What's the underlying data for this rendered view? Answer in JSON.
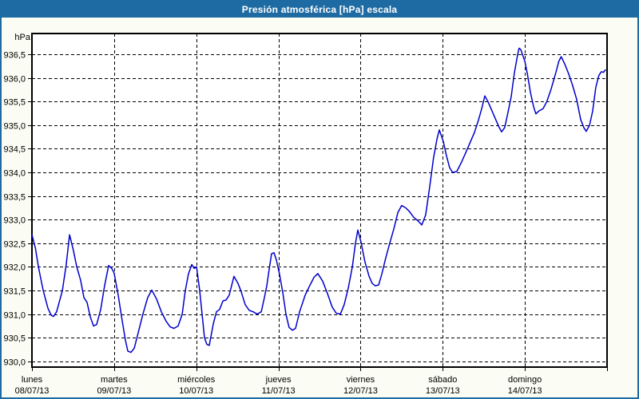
{
  "window": {
    "title": "Presión atmosférica [hPa] escala"
  },
  "colors": {
    "frame": "#1E6BA3",
    "titlebar_text": "#FFFFFF",
    "background": "#FBFCF3",
    "plot_background": "#FFFFFF",
    "grid": "#000000",
    "line": "#0000CC",
    "text": "#000000"
  },
  "chart_data": {
    "type": "line",
    "title": "Presión atmosférica [hPa] escala",
    "ylabel": "hPa",
    "xlabel": "",
    "x_unit": "hours_since_monday_00:00",
    "xlim_hours": 168,
    "ylim": [
      929.88,
      936.94
    ],
    "grid": "dashed-black",
    "legend": "none",
    "yticks": [
      {
        "value": 930.0,
        "label": "930,0"
      },
      {
        "value": 930.5,
        "label": "930,5"
      },
      {
        "value": 931.0,
        "label": "931,0"
      },
      {
        "value": 931.5,
        "label": "931,5"
      },
      {
        "value": 932.0,
        "label": "932,0"
      },
      {
        "value": 932.5,
        "label": "932,5"
      },
      {
        "value": 933.0,
        "label": "933,0"
      },
      {
        "value": 933.5,
        "label": "933,5"
      },
      {
        "value": 934.0,
        "label": "934,0"
      },
      {
        "value": 934.5,
        "label": "934,5"
      },
      {
        "value": 935.0,
        "label": "935,0"
      },
      {
        "value": 935.5,
        "label": "935,5"
      },
      {
        "value": 936.0,
        "label": "936,0"
      },
      {
        "value": 936.5,
        "label": "936,5"
      }
    ],
    "days": [
      {
        "name": "lunes",
        "date": "08/07/13"
      },
      {
        "name": "martes",
        "date": "09/07/13"
      },
      {
        "name": "miércoles",
        "date": "10/07/13"
      },
      {
        "name": "jueves",
        "date": "11/07/13"
      },
      {
        "name": "viernes",
        "date": "12/07/13"
      },
      {
        "name": "sábado",
        "date": "13/07/13"
      },
      {
        "name": "domingo",
        "date": "14/07/13"
      }
    ],
    "series": [
      {
        "name": "Presión atmosférica",
        "color": "#0000CC",
        "points": [
          [
            0.0,
            932.68
          ],
          [
            1.0,
            932.4
          ],
          [
            1.9,
            932.0
          ],
          [
            3.3,
            931.5
          ],
          [
            4.7,
            931.12
          ],
          [
            5.6,
            930.98
          ],
          [
            6.3,
            930.95
          ],
          [
            7.2,
            931.05
          ],
          [
            8.9,
            931.5
          ],
          [
            10.0,
            932.05
          ],
          [
            11.0,
            932.68
          ],
          [
            12.1,
            932.35
          ],
          [
            13.1,
            932.0
          ],
          [
            14.2,
            931.72
          ],
          [
            15.2,
            931.35
          ],
          [
            16.1,
            931.25
          ],
          [
            17.0,
            930.95
          ],
          [
            18.0,
            930.75
          ],
          [
            18.9,
            930.78
          ],
          [
            20.1,
            931.1
          ],
          [
            21.2,
            931.6
          ],
          [
            22.4,
            932.03
          ],
          [
            23.3,
            931.97
          ],
          [
            24.0,
            931.87
          ],
          [
            25.2,
            931.4
          ],
          [
            26.4,
            930.85
          ],
          [
            27.3,
            930.45
          ],
          [
            28.0,
            930.22
          ],
          [
            28.9,
            930.19
          ],
          [
            29.9,
            930.28
          ],
          [
            31.0,
            930.6
          ],
          [
            32.4,
            931.0
          ],
          [
            33.8,
            931.35
          ],
          [
            35.0,
            931.51
          ],
          [
            36.4,
            931.32
          ],
          [
            37.8,
            931.05
          ],
          [
            39.2,
            930.85
          ],
          [
            40.4,
            930.73
          ],
          [
            41.5,
            930.7
          ],
          [
            42.7,
            930.75
          ],
          [
            43.9,
            931.0
          ],
          [
            44.8,
            931.5
          ],
          [
            45.7,
            931.85
          ],
          [
            46.7,
            932.05
          ],
          [
            47.4,
            931.97
          ],
          [
            48.1,
            932.0
          ],
          [
            49.0,
            931.5
          ],
          [
            49.7,
            931.0
          ],
          [
            50.4,
            930.5
          ],
          [
            51.1,
            930.36
          ],
          [
            51.8,
            930.34
          ],
          [
            53.0,
            930.8
          ],
          [
            53.9,
            931.05
          ],
          [
            54.8,
            931.1
          ],
          [
            55.8,
            931.28
          ],
          [
            56.7,
            931.3
          ],
          [
            57.6,
            931.4
          ],
          [
            58.3,
            931.6
          ],
          [
            59.0,
            931.8
          ],
          [
            60.2,
            931.65
          ],
          [
            61.1,
            931.48
          ],
          [
            62.3,
            931.2
          ],
          [
            63.5,
            931.08
          ],
          [
            64.6,
            931.05
          ],
          [
            65.8,
            931.0
          ],
          [
            67.0,
            931.05
          ],
          [
            67.9,
            931.35
          ],
          [
            68.6,
            931.6
          ],
          [
            69.3,
            931.95
          ],
          [
            70.0,
            932.28
          ],
          [
            70.7,
            932.3
          ],
          [
            71.4,
            932.15
          ],
          [
            72.3,
            931.85
          ],
          [
            73.3,
            931.45
          ],
          [
            74.2,
            931.0
          ],
          [
            75.1,
            930.72
          ],
          [
            76.1,
            930.66
          ],
          [
            77.0,
            930.7
          ],
          [
            78.2,
            931.05
          ],
          [
            79.8,
            931.4
          ],
          [
            81.0,
            931.58
          ],
          [
            82.4,
            931.78
          ],
          [
            83.5,
            931.86
          ],
          [
            84.9,
            931.7
          ],
          [
            86.3,
            931.44
          ],
          [
            87.7,
            931.15
          ],
          [
            88.9,
            931.02
          ],
          [
            90.1,
            931.0
          ],
          [
            91.2,
            931.2
          ],
          [
            92.4,
            931.55
          ],
          [
            93.6,
            932.0
          ],
          [
            94.5,
            932.5
          ],
          [
            95.2,
            932.78
          ],
          [
            96.1,
            932.53
          ],
          [
            97.3,
            932.1
          ],
          [
            98.5,
            931.8
          ],
          [
            99.4,
            931.65
          ],
          [
            100.3,
            931.6
          ],
          [
            101.3,
            931.62
          ],
          [
            102.2,
            931.85
          ],
          [
            103.4,
            932.2
          ],
          [
            104.5,
            932.5
          ],
          [
            105.7,
            932.8
          ],
          [
            106.9,
            933.15
          ],
          [
            108.0,
            933.3
          ],
          [
            109.2,
            933.25
          ],
          [
            110.3,
            933.17
          ],
          [
            111.5,
            933.05
          ],
          [
            112.7,
            932.98
          ],
          [
            113.9,
            932.89
          ],
          [
            115.0,
            933.1
          ],
          [
            116.2,
            933.7
          ],
          [
            117.3,
            934.3
          ],
          [
            118.3,
            934.7
          ],
          [
            119.0,
            934.9
          ],
          [
            120.2,
            934.65
          ],
          [
            121.1,
            934.35
          ],
          [
            122.0,
            934.1
          ],
          [
            122.9,
            934.0
          ],
          [
            124.1,
            934.02
          ],
          [
            125.5,
            934.22
          ],
          [
            126.9,
            934.45
          ],
          [
            128.1,
            934.65
          ],
          [
            129.3,
            934.85
          ],
          [
            130.4,
            935.1
          ],
          [
            131.4,
            935.35
          ],
          [
            132.3,
            935.62
          ],
          [
            133.2,
            935.5
          ],
          [
            134.4,
            935.3
          ],
          [
            135.6,
            935.1
          ],
          [
            136.5,
            934.95
          ],
          [
            137.2,
            934.86
          ],
          [
            138.1,
            934.95
          ],
          [
            139.0,
            935.25
          ],
          [
            140.0,
            935.6
          ],
          [
            140.9,
            936.1
          ],
          [
            141.9,
            936.5
          ],
          [
            142.3,
            936.63
          ],
          [
            142.8,
            936.6
          ],
          [
            144.0,
            936.35
          ],
          [
            144.7,
            936.1
          ],
          [
            145.6,
            935.7
          ],
          [
            146.5,
            935.4
          ],
          [
            147.2,
            935.24
          ],
          [
            148.1,
            935.3
          ],
          [
            149.3,
            935.35
          ],
          [
            150.4,
            935.5
          ],
          [
            151.6,
            935.75
          ],
          [
            153.0,
            936.1
          ],
          [
            153.9,
            936.35
          ],
          [
            154.6,
            936.45
          ],
          [
            155.6,
            936.3
          ],
          [
            156.7,
            936.1
          ],
          [
            157.9,
            935.85
          ],
          [
            159.1,
            935.55
          ],
          [
            160.3,
            935.12
          ],
          [
            161.2,
            934.95
          ],
          [
            161.9,
            934.87
          ],
          [
            162.9,
            935.0
          ],
          [
            163.8,
            935.3
          ],
          [
            164.7,
            935.8
          ],
          [
            165.6,
            936.05
          ],
          [
            166.3,
            936.13
          ],
          [
            167.0,
            936.12
          ],
          [
            167.5,
            936.17
          ]
        ]
      }
    ]
  }
}
